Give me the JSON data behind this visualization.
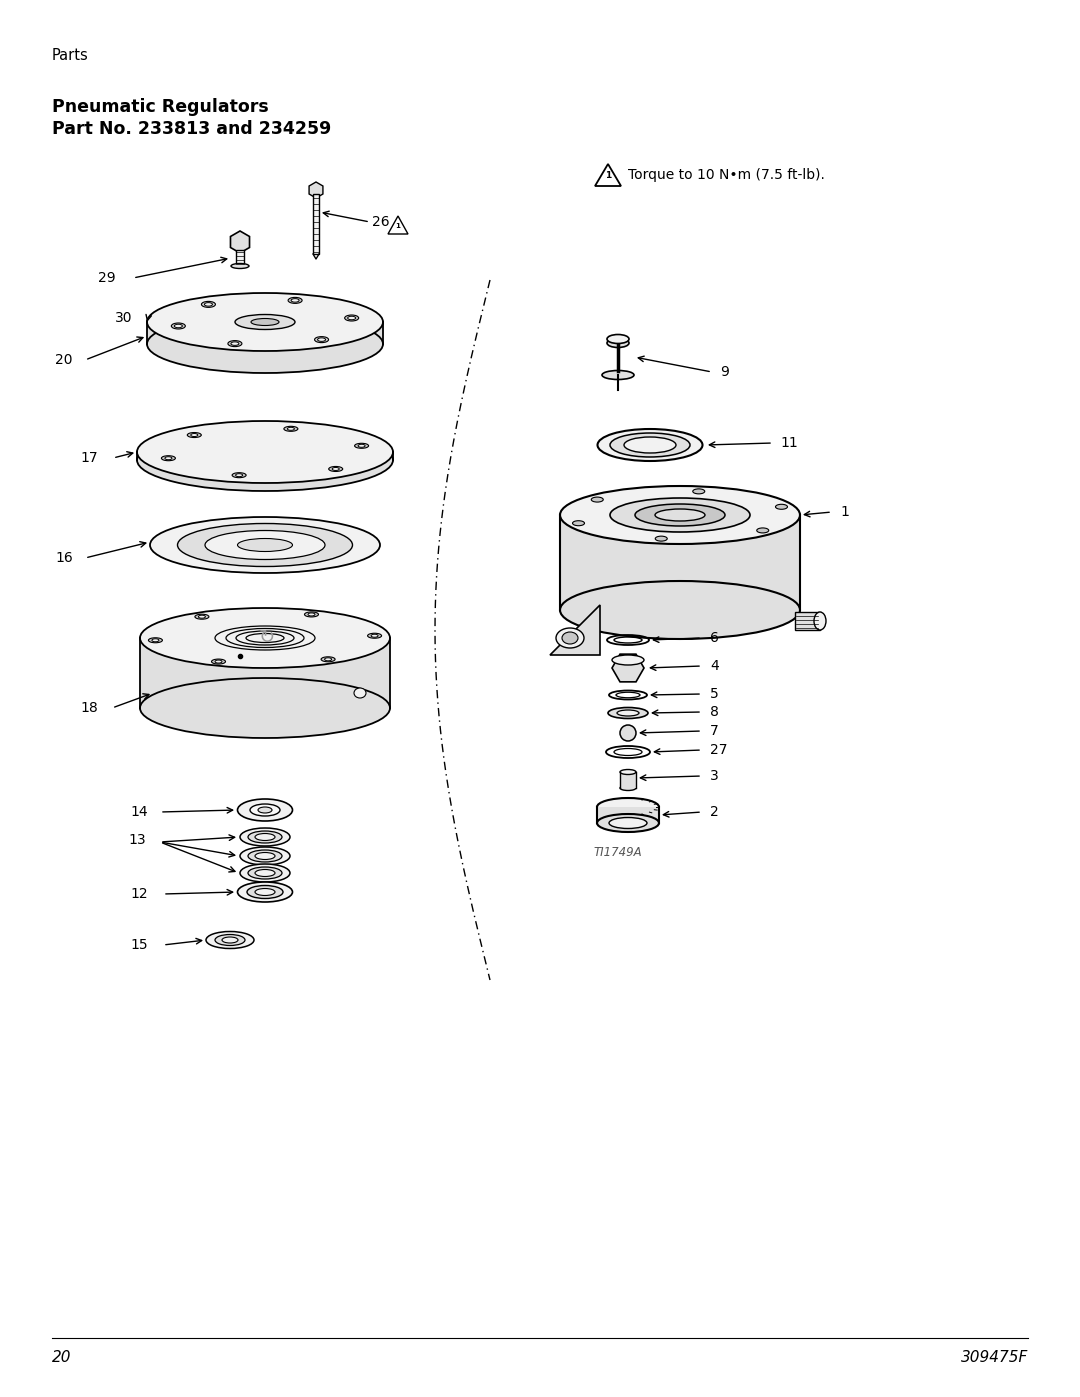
{
  "page_number": "20",
  "doc_number": "309475F",
  "section_title": "Parts",
  "heading_line1": "Pneumatic Regulators",
  "heading_line2": "Part No. 233813 and 234259",
  "torque_note": "Torque to 10 N•m (7.5 ft-lb).",
  "image_credit": "TI1749A",
  "bg": "#ffffff",
  "black": "#000000",
  "gray_light": "#f2f2f2",
  "gray_mid": "#e0e0e0",
  "gray_dark": "#c8c8c8",
  "fig_width": 10.8,
  "fig_height": 13.97,
  "dpi": 100
}
